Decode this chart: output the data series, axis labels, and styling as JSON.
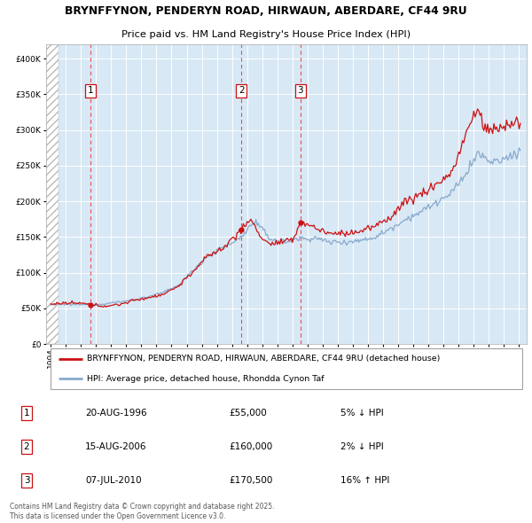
{
  "title_line1": "BRYNFFYNON, PENDERYN ROAD, HIRWAUN, ABERDARE, CF44 9RU",
  "title_line2": "Price paid vs. HM Land Registry's House Price Index (HPI)",
  "property_label": "BRYNFFYNON, PENDERYN ROAD, HIRWAUN, ABERDARE, CF44 9RU (detached house)",
  "hpi_label": "HPI: Average price, detached house, Rhondda Cynon Taf",
  "transactions": [
    {
      "num": 1,
      "date": "20-AUG-1996",
      "price": 55000,
      "pct": "5%",
      "dir": "↓",
      "year": 1996.63
    },
    {
      "num": 2,
      "date": "15-AUG-2006",
      "price": 160000,
      "pct": "2%",
      "dir": "↓",
      "year": 2006.63
    },
    {
      "num": 3,
      "date": "07-JUL-2010",
      "price": 170500,
      "pct": "16%",
      "dir": "↑",
      "year": 2010.52
    }
  ],
  "copyright": "Contains HM Land Registry data © Crown copyright and database right 2025.\nThis data is licensed under the Open Government Licence v3.0.",
  "ylim": [
    0,
    420000
  ],
  "yticks": [
    0,
    50000,
    100000,
    150000,
    200000,
    250000,
    300000,
    350000,
    400000
  ],
  "plot_background": "#d8e8f5",
  "grid_color": "#ffffff",
  "hpi_color": "#88aacc",
  "property_color": "#cc1111",
  "marker_color": "#cc1111",
  "hatch_color": "#bbbbbb",
  "label_positions": {
    "1": [
      1996.63,
      355000
    ],
    "2": [
      2006.63,
      355000
    ],
    "3": [
      2010.52,
      355000
    ]
  },
  "start_year": 1994,
  "end_year": 2025,
  "hpi_waypoints": {
    "1994.0": 55000,
    "1995.0": 55500,
    "1997.0": 55000,
    "1999.0": 60000,
    "2000.0": 64000,
    "2001.5": 72000,
    "2002.5": 83000,
    "2003.5": 105000,
    "2004.5": 125000,
    "2005.5": 135000,
    "2006.5": 148000,
    "2007.5": 172000,
    "2008.5": 148000,
    "2009.5": 143000,
    "2010.5": 148000,
    "2011.5": 148000,
    "2012.5": 143000,
    "2013.5": 143000,
    "2014.5": 145000,
    "2015.5": 150000,
    "2016.5": 162000,
    "2017.5": 175000,
    "2018.5": 185000,
    "2019.5": 198000,
    "2020.5": 210000,
    "2021.5": 240000,
    "2022.3": 268000,
    "2022.8": 258000,
    "2023.5": 255000,
    "2024.0": 258000,
    "2024.5": 265000,
    "2025.1": 270000
  },
  "prop_waypoints": {
    "1994.0": 56000,
    "1995.0": 57000,
    "1996.0": 57000,
    "1996.63": 55000,
    "1997.5": 53000,
    "1998.5": 55000,
    "1999.5": 61000,
    "2000.5": 65000,
    "2001.5": 70000,
    "2002.5": 82000,
    "2003.5": 103000,
    "2004.5": 125000,
    "2005.5": 135000,
    "2006.0": 148000,
    "2006.63": 160000,
    "2007.2": 175000,
    "2008.0": 148000,
    "2008.5": 140000,
    "2009.5": 143000,
    "2010.0": 145000,
    "2010.52": 170500,
    "2011.0": 168000,
    "2011.5": 163000,
    "2012.0": 158000,
    "2012.5": 155000,
    "2013.5": 155000,
    "2014.5": 158000,
    "2015.5": 165000,
    "2016.5": 178000,
    "2017.0": 190000,
    "2017.5": 200000,
    "2018.0": 205000,
    "2018.5": 210000,
    "2019.0": 215000,
    "2019.5": 225000,
    "2020.0": 230000,
    "2020.5": 240000,
    "2021.0": 265000,
    "2021.5": 295000,
    "2022.0": 320000,
    "2022.3": 328000,
    "2022.6": 310000,
    "2022.9": 298000,
    "2023.2": 302000,
    "2023.5": 300000,
    "2024.0": 305000,
    "2024.5": 310000,
    "2025.1": 310000
  }
}
